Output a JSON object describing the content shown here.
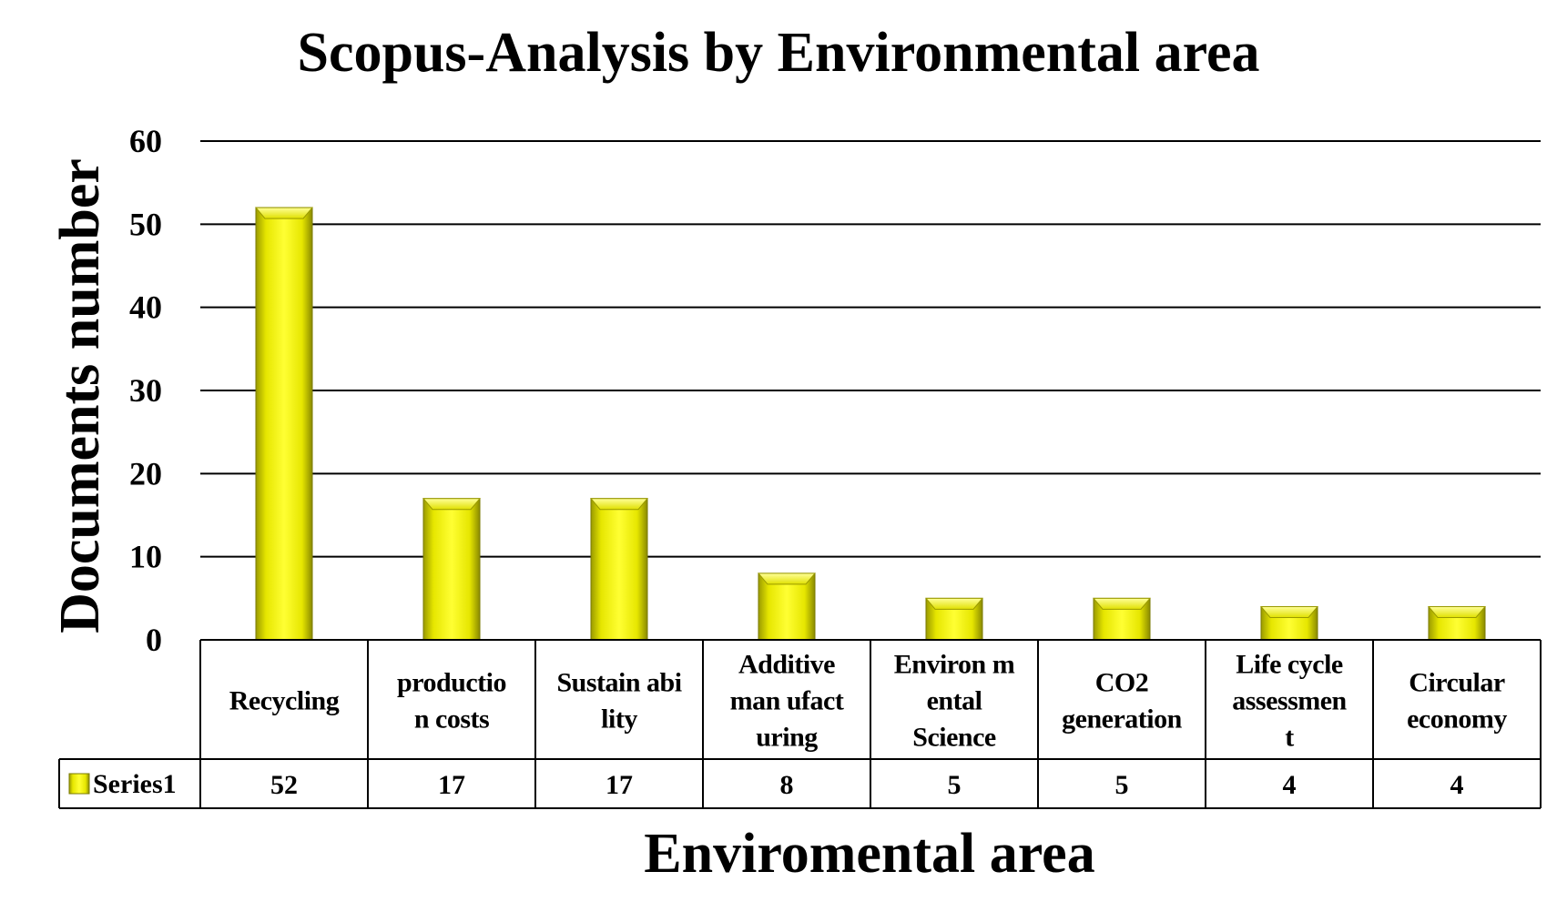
{
  "chart_data": {
    "type": "bar",
    "title": "Scopus-Analysis by Environmental area",
    "xlabel": "Enviromental area",
    "ylabel": "Documents number",
    "categories": [
      [
        "Recycling"
      ],
      [
        "productio",
        "n costs"
      ],
      [
        "Sustain abi",
        "lity"
      ],
      [
        "Additive",
        "man ufact",
        "uring"
      ],
      [
        "Environ m",
        "ental",
        "Science"
      ],
      [
        "CO2",
        "generation"
      ],
      [
        "Life cycle",
        "assessmen",
        "t"
      ],
      [
        "Circular",
        "economy"
      ]
    ],
    "series": [
      {
        "name": "Series1",
        "values": [
          52,
          17,
          17,
          8,
          5,
          5,
          4,
          4
        ],
        "color": "#f2f200"
      }
    ],
    "value_labels": [
      "52",
      "17",
      "17",
      "8",
      "5",
      "5",
      "4",
      "4"
    ],
    "ylim": [
      0,
      60
    ],
    "yticks": [
      0,
      10,
      20,
      30,
      40,
      50,
      60
    ],
    "grid": true,
    "data_table": true,
    "bar_style": "3d-bevel"
  }
}
